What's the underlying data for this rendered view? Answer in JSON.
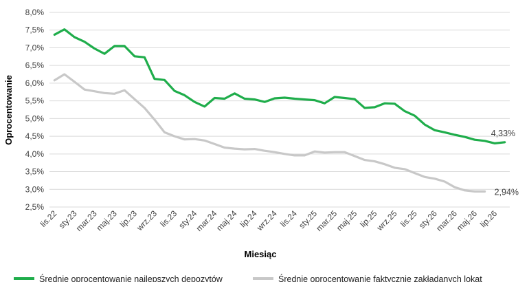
{
  "chart_data": {
    "type": "line",
    "xlabel": "Miesiąc",
    "ylabel": "Oprocentowanie",
    "ylim": [
      2.5,
      8.0
    ],
    "ytick_step": 0.5,
    "ytick_labels": [
      "2,5%",
      "3,0%",
      "3,5%",
      "4,0%",
      "4,5%",
      "5,0%",
      "5,5%",
      "6,0%",
      "6,5%",
      "7,0%",
      "7,5%",
      "8,0%"
    ],
    "x_labels": [
      "lis.22",
      "sty.23",
      "mar.23",
      "maj.23",
      "lip.23",
      "wrz.23",
      "lis.23",
      "sty.24",
      "mar.24",
      "maj.24",
      "lip.24",
      "wrz.24",
      "lis.24",
      "sty.25",
      "mar.25",
      "maj.25",
      "lip.25",
      "wrz.25",
      "lis.25",
      "sty.26",
      "mar.26",
      "maj.26",
      "lip.26"
    ],
    "grid": true,
    "legend_position": "bottom",
    "series": [
      {
        "name": "Średnie oprocentowanie najlepszych depozytów",
        "color": "#1fad4b",
        "end_label": "4,33%",
        "values": [
          7.37,
          7.52,
          7.3,
          7.17,
          6.98,
          6.83,
          7.05,
          7.05,
          6.76,
          6.73,
          6.12,
          6.09,
          5.78,
          5.66,
          5.47,
          5.34,
          5.58,
          5.56,
          5.71,
          5.56,
          5.54,
          5.47,
          5.57,
          5.59,
          5.56,
          5.54,
          5.52,
          5.43,
          5.61,
          5.58,
          5.55,
          5.3,
          5.32,
          5.43,
          5.42,
          5.21,
          5.08,
          4.83,
          4.67,
          4.61,
          4.54,
          4.48,
          4.4,
          4.37,
          4.3,
          4.33
        ]
      },
      {
        "name": "Średnie oprocentowanie faktycznie zakładanych lokat",
        "color": "#c8c8c8",
        "end_label": "2,94%",
        "values": [
          6.08,
          6.25,
          6.04,
          5.82,
          5.77,
          5.72,
          5.7,
          5.8,
          5.55,
          5.3,
          4.97,
          4.61,
          4.5,
          4.41,
          4.42,
          4.38,
          4.28,
          4.18,
          4.15,
          4.13,
          4.14,
          4.09,
          4.05,
          4.0,
          3.96,
          3.96,
          4.07,
          4.04,
          4.05,
          4.05,
          3.94,
          3.83,
          3.79,
          3.71,
          3.61,
          3.57,
          3.46,
          3.35,
          3.3,
          3.22,
          3.06,
          2.97,
          2.94,
          2.94
        ]
      }
    ]
  }
}
